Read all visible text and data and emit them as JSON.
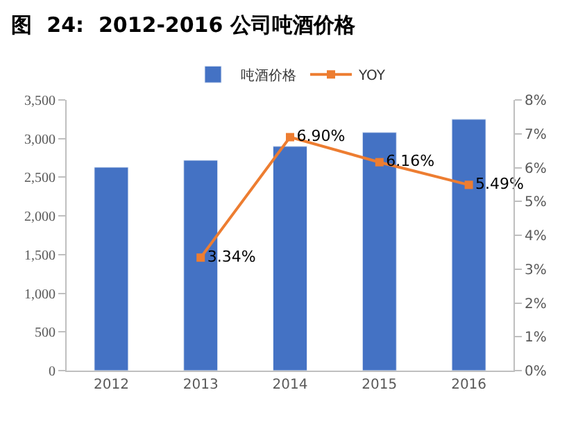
{
  "chart_data": {
    "type": "bar",
    "title": "图  24:  2012-2016 公司吨酒价格",
    "categories": [
      "2012",
      "2013",
      "2014",
      "2015",
      "2016"
    ],
    "series": [
      {
        "name": "吨酒价格",
        "color": "#4472c4",
        "values": [
          2630,
          2720,
          2900,
          3080,
          3250
        ]
      },
      {
        "name": "YOY",
        "type": "line",
        "axis": "y2",
        "color": "#ed7d31",
        "values": [
          null,
          3.34,
          6.9,
          6.16,
          5.49
        ],
        "value_labels": [
          null,
          "3.34%",
          "6.90%",
          "6.16%",
          "5.49%"
        ]
      }
    ],
    "ylim": [
      0,
      3500
    ],
    "yticks": [
      {
        "value": 0,
        "label": "0"
      },
      {
        "value": 500,
        "label": "500"
      },
      {
        "value": 1000,
        "label": "1,000"
      },
      {
        "value": 1500,
        "label": "1,500"
      },
      {
        "value": 2000,
        "label": "2,000"
      },
      {
        "value": 2500,
        "label": "2,500"
      },
      {
        "value": 3000,
        "label": "3,000"
      },
      {
        "value": 3500,
        "label": "3,500"
      }
    ],
    "y2lim": [
      0,
      8
    ],
    "y2ticks": [
      {
        "value": 0,
        "label": "0%"
      },
      {
        "value": 1,
        "label": "1%"
      },
      {
        "value": 2,
        "label": "2%"
      },
      {
        "value": 3,
        "label": "3%"
      },
      {
        "value": 4,
        "label": "4%"
      },
      {
        "value": 5,
        "label": "5%"
      },
      {
        "value": 6,
        "label": "6%"
      },
      {
        "value": 7,
        "label": "7%"
      },
      {
        "value": 8,
        "label": "8%"
      }
    ],
    "marker": "square",
    "line_style": "solid",
    "legend": "top"
  }
}
